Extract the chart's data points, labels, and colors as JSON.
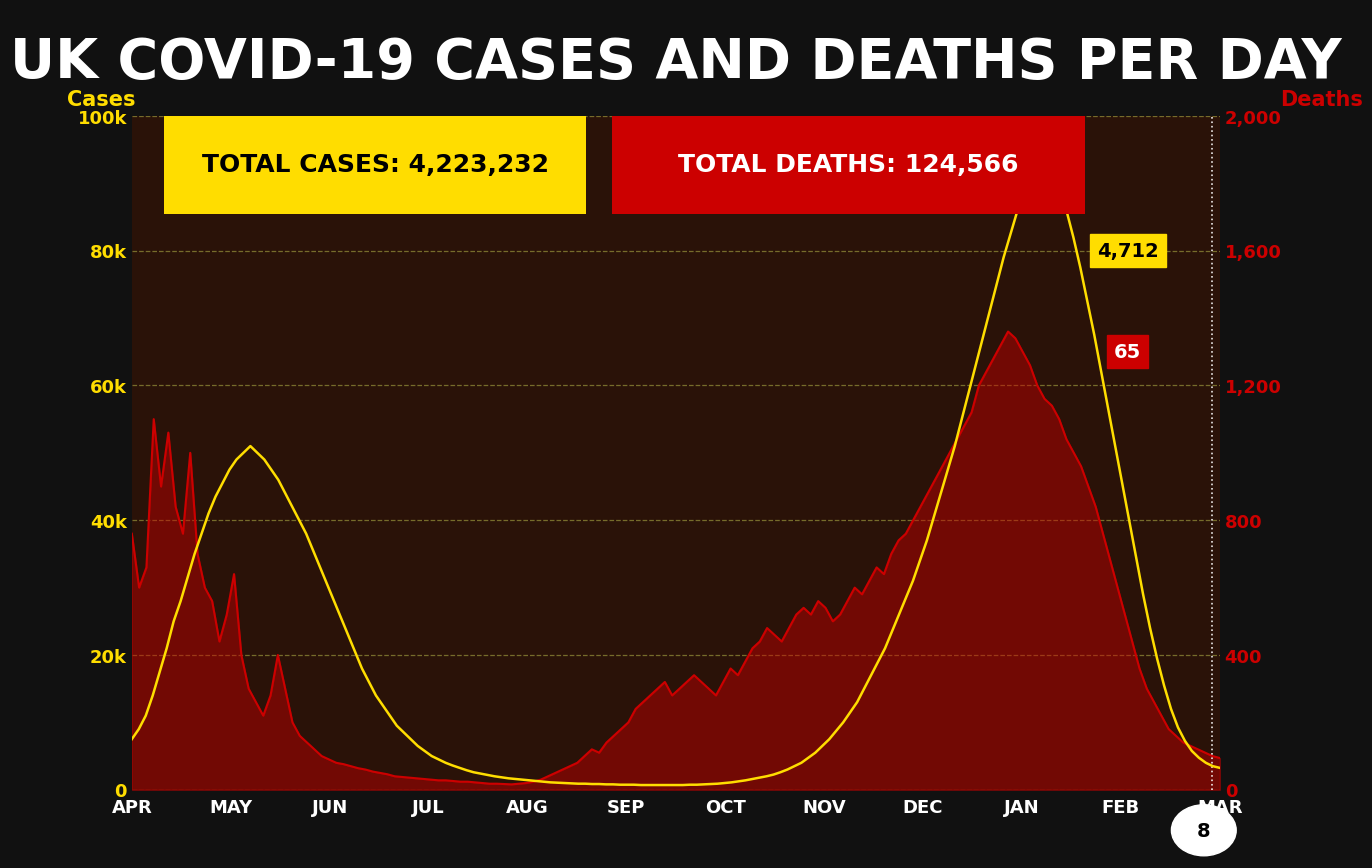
{
  "title": "UK COVID-19 CASES AND DEATHS PER DAY",
  "title_color": "#ffffff",
  "title_bg_color": "#111111",
  "bg_color": "#111111",
  "plot_bg_color": "#2a1208",
  "total_cases_label": "TOTAL CASES: 4,223,232",
  "total_deaths_label": "TOTAL DEATHS: 124,566",
  "cases_box_color": "#ffdd00",
  "deaths_box_color": "#cc0000",
  "ylabel_left": "Cases",
  "ylabel_right": "Deaths",
  "ylabel_color_left": "#ffdd00",
  "ylabel_color_right": "#cc0000",
  "cases_line_color": "#cc0000",
  "deaths_line_color": "#ffdd00",
  "grid_color": "#aaaa44",
  "last_cases_label": "4,712",
  "last_deaths_label": "65",
  "page_number": "8",
  "x_labels": [
    "APR",
    "MAY",
    "JUN",
    "JUL",
    "AUG",
    "SEP",
    "OCT",
    "NOV",
    "DEC",
    "JAN",
    "FEB",
    "MAR"
  ],
  "ylim_left": [
    0,
    100000
  ],
  "ylim_right": [
    0,
    2000
  ],
  "yticks_left": [
    0,
    20000,
    40000,
    60000,
    80000,
    100000
  ],
  "ytick_labels_left": [
    "0",
    "20k",
    "40k",
    "60k",
    "80k",
    "100k"
  ],
  "yticks_right": [
    0,
    400,
    800,
    1200,
    1600,
    2000
  ],
  "ytick_labels_right": [
    "0",
    "400",
    "800",
    "1,200",
    "1,600",
    "2,000"
  ],
  "cases_data": [
    38000,
    30000,
    33000,
    55000,
    45000,
    53000,
    42000,
    38000,
    50000,
    35000,
    30000,
    28000,
    22000,
    26000,
    32000,
    20000,
    15000,
    13000,
    11000,
    14000,
    20000,
    15000,
    10000,
    8000,
    7000,
    6000,
    5000,
    4500,
    4000,
    3800,
    3500,
    3200,
    3000,
    2700,
    2500,
    2300,
    2000,
    1900,
    1800,
    1700,
    1600,
    1500,
    1400,
    1400,
    1300,
    1200,
    1200,
    1100,
    1000,
    900,
    900,
    850,
    800,
    900,
    1000,
    1200,
    1500,
    2000,
    2500,
    3000,
    3500,
    4000,
    5000,
    6000,
    5500,
    7000,
    8000,
    9000,
    10000,
    12000,
    13000,
    14000,
    15000,
    16000,
    14000,
    15000,
    16000,
    17000,
    16000,
    15000,
    14000,
    16000,
    18000,
    17000,
    19000,
    21000,
    22000,
    24000,
    23000,
    22000,
    24000,
    26000,
    27000,
    26000,
    28000,
    27000,
    25000,
    26000,
    28000,
    30000,
    29000,
    31000,
    33000,
    32000,
    35000,
    37000,
    38000,
    40000,
    42000,
    44000,
    46000,
    48000,
    50000,
    52000,
    54000,
    56000,
    60000,
    62000,
    64000,
    66000,
    68000,
    67000,
    65000,
    63000,
    60000,
    58000,
    57000,
    55000,
    52000,
    50000,
    48000,
    45000,
    42000,
    38000,
    34000,
    30000,
    26000,
    22000,
    18000,
    15000,
    13000,
    11000,
    9000,
    8000,
    7000,
    6500,
    6000,
    5500,
    5000,
    4712
  ],
  "deaths_data": [
    150,
    180,
    220,
    280,
    350,
    420,
    500,
    560,
    630,
    700,
    760,
    820,
    870,
    910,
    950,
    980,
    1000,
    1020,
    1000,
    980,
    950,
    920,
    880,
    840,
    800,
    760,
    710,
    660,
    610,
    560,
    510,
    460,
    410,
    360,
    320,
    280,
    250,
    220,
    190,
    170,
    150,
    130,
    115,
    100,
    90,
    80,
    72,
    65,
    58,
    52,
    48,
    44,
    40,
    37,
    34,
    32,
    30,
    28,
    26,
    24,
    22,
    21,
    20,
    19,
    18,
    18,
    17,
    17,
    16,
    16,
    15,
    15,
    15,
    14,
    14,
    14,
    14,
    14,
    14,
    14,
    15,
    15,
    16,
    17,
    18,
    20,
    22,
    25,
    28,
    32,
    36,
    40,
    45,
    52,
    60,
    70,
    80,
    95,
    110,
    130,
    150,
    175,
    200,
    230,
    260,
    300,
    340,
    380,
    420,
    470,
    520,
    570,
    620,
    680,
    740,
    810,
    880,
    950,
    1020,
    1100,
    1180,
    1260,
    1340,
    1420,
    1500,
    1580,
    1650,
    1720,
    1780,
    1820,
    1840,
    1840,
    1820,
    1780,
    1720,
    1640,
    1550,
    1450,
    1350,
    1240,
    1130,
    1020,
    910,
    800,
    690,
    580,
    480,
    390,
    310,
    240,
    185,
    145,
    115,
    95,
    80,
    70,
    65
  ]
}
